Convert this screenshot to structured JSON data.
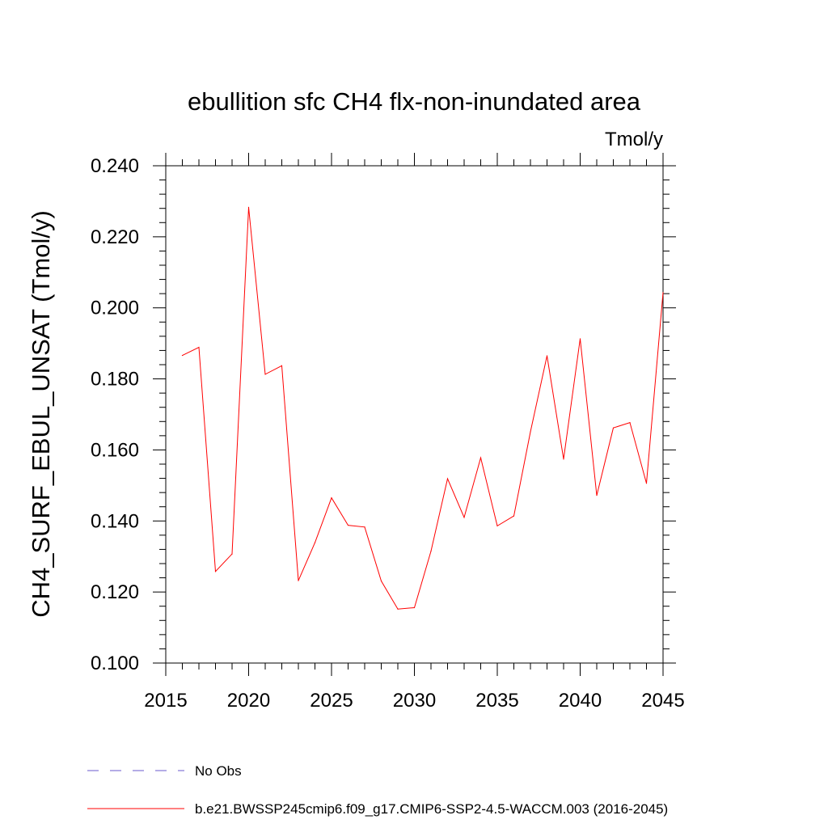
{
  "chart_data": {
    "type": "line",
    "title": "ebullition sfc CH4 flx-non-inundated area",
    "units": "Tmol/y",
    "ylabel": "CH4_SURF_EBUL_UNSAT  (Tmol/y)",
    "xlabel": "",
    "xlim": [
      2015,
      2045
    ],
    "ylim": [
      0.1,
      0.24
    ],
    "xticks": [
      2015,
      2020,
      2025,
      2030,
      2035,
      2040,
      2045
    ],
    "xtick_labels": [
      "2015",
      "2020",
      "2025",
      "2030",
      "2035",
      "2040",
      "2045"
    ],
    "yticks": [
      0.1,
      0.12,
      0.14,
      0.16,
      0.18,
      0.2,
      0.22,
      0.24
    ],
    "ytick_labels": [
      "0.100",
      "0.120",
      "0.140",
      "0.160",
      "0.180",
      "0.200",
      "0.220",
      "0.240"
    ],
    "grid": false,
    "legend_position": "bottom-left",
    "series": [
      {
        "name": "b.e21.BWSSP245cmip6.f09_g17.CMIP6-SSP2-4.5-WACCM.003 (2016-2045)",
        "color": "#ff0000",
        "style": "solid",
        "x": [
          2016,
          2017,
          2018,
          2019,
          2020,
          2021,
          2022,
          2023,
          2024,
          2025,
          2026,
          2027,
          2028,
          2029,
          2030,
          2031,
          2032,
          2033,
          2034,
          2035,
          2036,
          2037,
          2038,
          2039,
          2040,
          2041,
          2042,
          2043,
          2044,
          2045
        ],
        "y": [
          0.1866,
          0.1889,
          0.1258,
          0.1307,
          0.2283,
          0.1813,
          0.1837,
          0.1232,
          0.1339,
          0.1465,
          0.1388,
          0.1383,
          0.1231,
          0.1152,
          0.1156,
          0.1315,
          0.1519,
          0.141,
          0.1578,
          0.1386,
          0.1414,
          0.1651,
          0.1865,
          0.1574,
          0.1913,
          0.1472,
          0.1662,
          0.1677,
          0.1506,
          0.2043
        ]
      },
      {
        "name": "No Obs",
        "color": "#6a5acd",
        "style": "dashed",
        "x": [],
        "y": []
      }
    ]
  }
}
